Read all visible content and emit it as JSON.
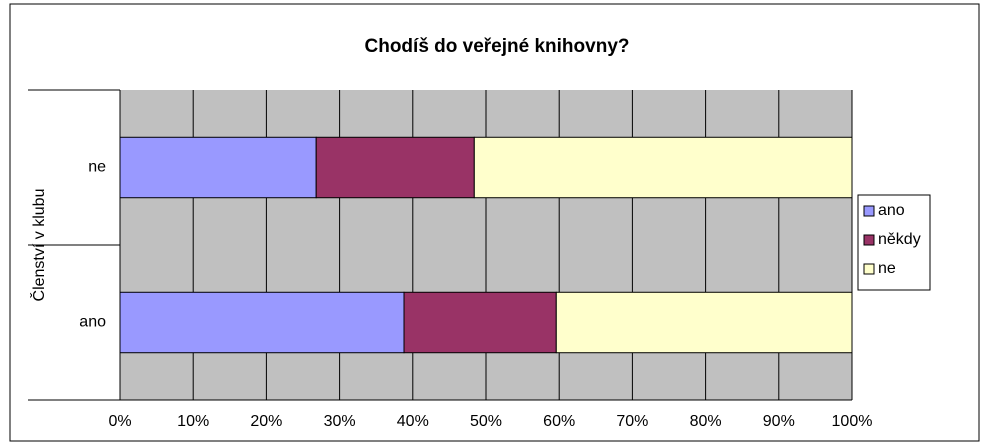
{
  "chart_data": {
    "type": "stacked-bar-horizontal",
    "title": "Chodíš do veřejné knihovny?",
    "y_label": "Členství v klubu",
    "categories": [
      "ne",
      "ano"
    ],
    "series": [
      {
        "name": "ano",
        "color": "#9999ff",
        "values": [
          26.8,
          38.8
        ]
      },
      {
        "name": "někdy",
        "color": "#993366",
        "values": [
          21.6,
          20.8
        ]
      },
      {
        "name": "ne",
        "color": "#ffffcc",
        "values": [
          51.6,
          40.4
        ]
      }
    ],
    "xlim": [
      0,
      100
    ],
    "xticks": [
      {
        "value": 0,
        "label": "0%"
      },
      {
        "value": 10,
        "label": "10%"
      },
      {
        "value": 20,
        "label": "20%"
      },
      {
        "value": 30,
        "label": "30%"
      },
      {
        "value": 40,
        "label": "40%"
      },
      {
        "value": 50,
        "label": "50%"
      },
      {
        "value": 60,
        "label": "60%"
      },
      {
        "value": 70,
        "label": "70%"
      },
      {
        "value": 80,
        "label": "80%"
      },
      {
        "value": 90,
        "label": "90%"
      },
      {
        "value": 100,
        "label": "100%"
      }
    ],
    "grid": true,
    "legend": "right"
  }
}
